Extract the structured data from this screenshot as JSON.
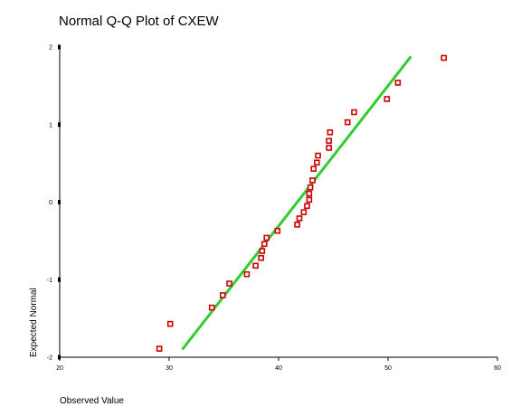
{
  "chart_data": {
    "type": "scatter",
    "title": "Normal Q-Q Plot of CXEW",
    "xlabel": "Observed Value",
    "ylabel": "Expected Normal",
    "xlim": [
      20,
      60
    ],
    "ylim": [
      -2,
      2
    ],
    "x_ticks": [
      20,
      30,
      40,
      50,
      60
    ],
    "y_ticks": [
      2,
      1,
      0,
      -1,
      -2
    ],
    "grid": false,
    "legend": "none",
    "colors": {
      "points": "#cc0000",
      "reference_line": "#33cc33",
      "frame": "#000000"
    },
    "reference_line": {
      "x": [
        31.2,
        52.1
      ],
      "y": [
        -1.9,
        1.88
      ]
    },
    "points": [
      {
        "x": 29.1,
        "y": -1.89
      },
      {
        "x": 30.1,
        "y": -1.57
      },
      {
        "x": 33.9,
        "y": -1.36
      },
      {
        "x": 34.9,
        "y": -1.2
      },
      {
        "x": 35.5,
        "y": -1.05
      },
      {
        "x": 37.1,
        "y": -0.93
      },
      {
        "x": 37.9,
        "y": -0.82
      },
      {
        "x": 38.4,
        "y": -0.72
      },
      {
        "x": 38.5,
        "y": -0.63
      },
      {
        "x": 38.7,
        "y": -0.54
      },
      {
        "x": 38.9,
        "y": -0.46
      },
      {
        "x": 39.9,
        "y": -0.37
      },
      {
        "x": 41.7,
        "y": -0.29
      },
      {
        "x": 41.9,
        "y": -0.21
      },
      {
        "x": 42.3,
        "y": -0.13
      },
      {
        "x": 42.6,
        "y": -0.05
      },
      {
        "x": 42.8,
        "y": 0.03
      },
      {
        "x": 42.8,
        "y": 0.11
      },
      {
        "x": 42.9,
        "y": 0.19
      },
      {
        "x": 43.1,
        "y": 0.28
      },
      {
        "x": 43.2,
        "y": 0.43
      },
      {
        "x": 43.5,
        "y": 0.51
      },
      {
        "x": 43.6,
        "y": 0.6
      },
      {
        "x": 44.6,
        "y": 0.7
      },
      {
        "x": 44.6,
        "y": 0.79
      },
      {
        "x": 44.7,
        "y": 0.9
      },
      {
        "x": 46.3,
        "y": 1.03
      },
      {
        "x": 46.9,
        "y": 1.16
      },
      {
        "x": 49.9,
        "y": 1.33
      },
      {
        "x": 50.9,
        "y": 1.54
      },
      {
        "x": 55.1,
        "y": 1.86
      }
    ]
  }
}
